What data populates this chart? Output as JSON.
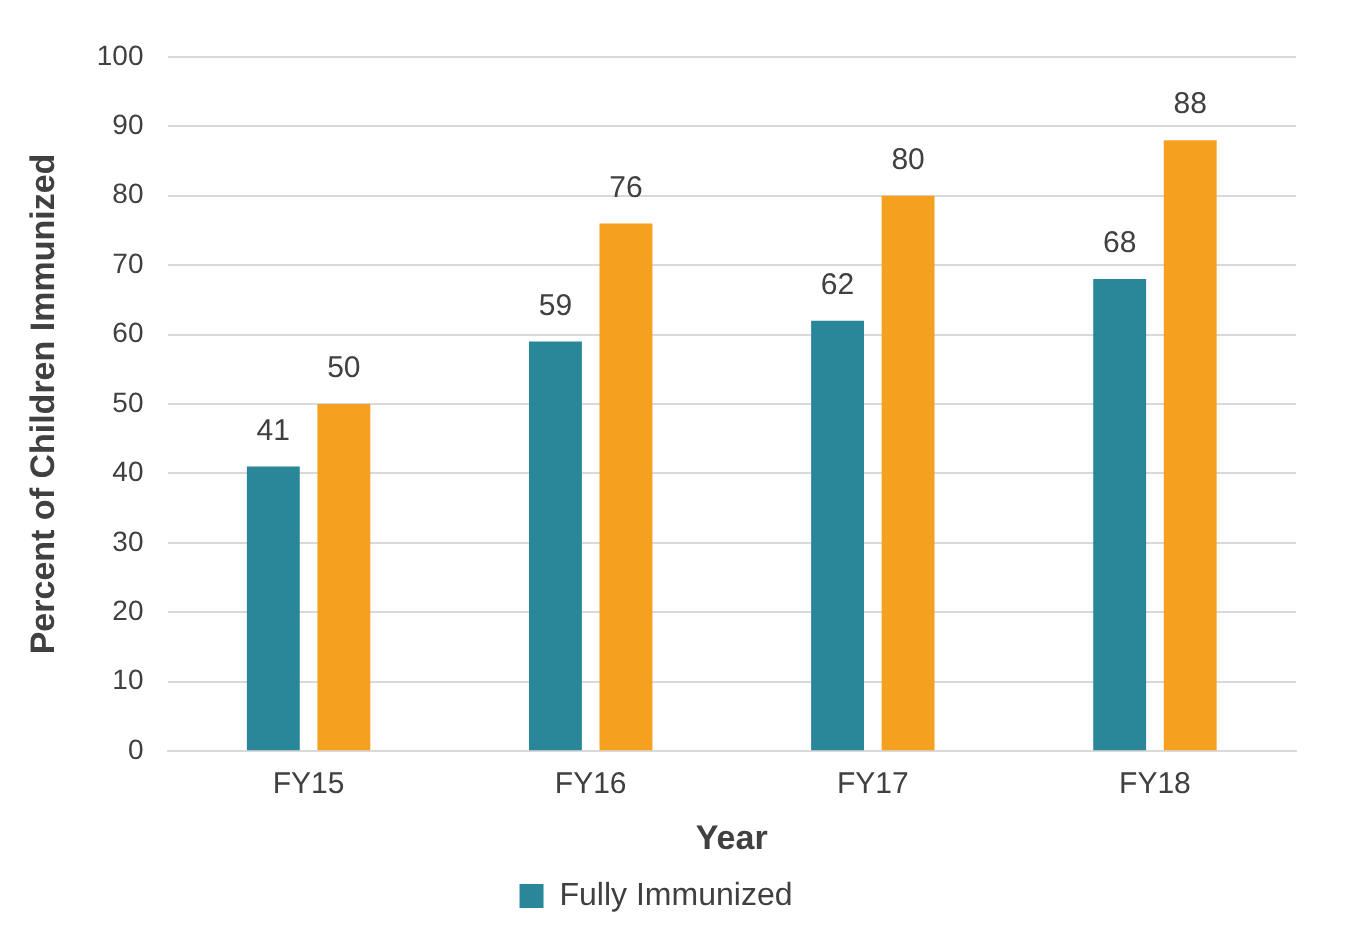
{
  "chart_data": {
    "type": "bar",
    "xlabel": "Year",
    "ylabel": "Percent of Children Immunized",
    "categories": [
      "FY15",
      "FY16",
      "FY17",
      "FY18"
    ],
    "series": [
      {
        "name": "Fully Immunized",
        "color": "#2a8799",
        "values": [
          41,
          59,
          62,
          68
        ]
      },
      {
        "color": "#f5a01f",
        "values": [
          50,
          76,
          80,
          88
        ]
      }
    ],
    "ylim": [
      0,
      100
    ],
    "yticks": [
      0,
      10,
      20,
      30,
      40,
      50,
      60,
      70,
      80,
      90,
      100
    ],
    "grid": "y",
    "legend": "bottom",
    "data_labels": true
  }
}
